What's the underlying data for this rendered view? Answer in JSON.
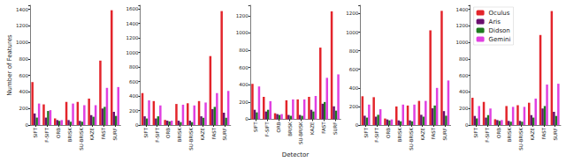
{
  "chart_data": [
    {
      "type": "bar",
      "y_label": "Number of Features",
      "categories": [
        "SIFT",
        "F-SIFT",
        "ORB",
        "BRISK",
        "SU-BRISK",
        "KAZE",
        "FAST",
        "SURF"
      ],
      "series": [
        {
          "name": "Oculus",
          "color": "#e3242b",
          "values": [
            520,
            250,
            80,
            280,
            280,
            320,
            780,
            1390
          ]
        },
        {
          "name": "Aris",
          "color": "#6b0f6e",
          "values": [
            140,
            90,
            60,
            60,
            50,
            120,
            200,
            160
          ]
        },
        {
          "name": "Didson",
          "color": "#1e7a1e",
          "values": [
            90,
            170,
            50,
            40,
            40,
            100,
            220,
            110
          ]
        },
        {
          "name": "Gemini",
          "color": "#e040e0",
          "values": [
            260,
            180,
            60,
            260,
            240,
            240,
            450,
            460
          ]
        }
      ],
      "ylim": [
        0,
        1450
      ],
      "yticks": [
        0,
        200,
        400,
        600,
        800,
        1000,
        1200,
        1400
      ],
      "grid": false
    },
    {
      "type": "bar",
      "categories": [
        "SIFT",
        "F-SIFT",
        "ORB",
        "BRISK",
        "SU-BRISK",
        "KAZE",
        "FAST",
        "SURF"
      ],
      "series": [
        {
          "name": "Oculus",
          "color": "#e3242b",
          "values": [
            440,
            330,
            70,
            290,
            300,
            330,
            950,
            1570
          ]
        },
        {
          "name": "Aris",
          "color": "#6b0f6e",
          "values": [
            120,
            90,
            60,
            60,
            60,
            120,
            220,
            170
          ]
        },
        {
          "name": "Didson",
          "color": "#1e7a1e",
          "values": [
            90,
            120,
            50,
            40,
            40,
            100,
            250,
            100
          ]
        },
        {
          "name": "Gemini",
          "color": "#e040e0",
          "values": [
            340,
            270,
            60,
            280,
            270,
            310,
            440,
            470
          ]
        }
      ],
      "ylim": [
        0,
        1650
      ],
      "yticks": [
        0,
        200,
        400,
        600,
        800,
        1000,
        1200,
        1400,
        1600
      ],
      "grid": false
    },
    {
      "type": "bar",
      "x_label": "Detector",
      "categories": [
        "SIFT",
        "F-SIFT",
        "ORB",
        "BRISK",
        "SU-BRISK",
        "KAZE",
        "FAST",
        "SURF"
      ],
      "series": [
        {
          "name": "Oculus",
          "color": "#e3242b",
          "values": [
            410,
            260,
            70,
            220,
            230,
            260,
            830,
            1250
          ]
        },
        {
          "name": "Aris",
          "color": "#6b0f6e",
          "values": [
            110,
            90,
            60,
            50,
            50,
            110,
            180,
            150
          ]
        },
        {
          "name": "Didson",
          "color": "#1e7a1e",
          "values": [
            80,
            110,
            50,
            40,
            40,
            90,
            200,
            100
          ]
        },
        {
          "name": "Gemini",
          "color": "#e040e0",
          "values": [
            380,
            210,
            60,
            230,
            230,
            270,
            480,
            520
          ]
        }
      ],
      "ylim": [
        0,
        1320
      ],
      "yticks": [
        0,
        200,
        400,
        600,
        800,
        1000,
        1200
      ],
      "grid": false
    },
    {
      "type": "bar",
      "categories": [
        "SIFT",
        "F-SIFT",
        "ORB",
        "BRISK",
        "SU-BRISK",
        "KAZE",
        "FAST",
        "SURF"
      ],
      "series": [
        {
          "name": "Oculus",
          "color": "#e3242b",
          "values": [
            310,
            300,
            70,
            200,
            210,
            260,
            1020,
            1230
          ]
        },
        {
          "name": "Aris",
          "color": "#6b0f6e",
          "values": [
            100,
            90,
            60,
            50,
            50,
            110,
            180,
            150
          ]
        },
        {
          "name": "Didson",
          "color": "#1e7a1e",
          "values": [
            80,
            110,
            50,
            40,
            40,
            90,
            210,
            100
          ]
        },
        {
          "name": "Gemini",
          "color": "#e040e0",
          "values": [
            220,
            170,
            60,
            220,
            220,
            260,
            400,
            480
          ]
        }
      ],
      "ylim": [
        0,
        1290
      ],
      "yticks": [
        0,
        200,
        400,
        600,
        800,
        1000,
        1200
      ],
      "grid": false
    },
    {
      "type": "bar",
      "legend": "upper left",
      "categories": [
        "SIFT",
        "F-SIFT",
        "ORB",
        "BRISK",
        "SU-BRISK",
        "KAZE",
        "FAST",
        "SURF"
      ],
      "series": [
        {
          "name": "Oculus",
          "color": "#e3242b",
          "values": [
            330,
            280,
            70,
            230,
            240,
            270,
            1090,
            1380
          ]
        },
        {
          "name": "Aris",
          "color": "#6b0f6e",
          "values": [
            110,
            90,
            60,
            50,
            50,
            120,
            200,
            160
          ]
        },
        {
          "name": "Didson",
          "color": "#1e7a1e",
          "values": [
            80,
            120,
            50,
            40,
            40,
            90,
            230,
            110
          ]
        },
        {
          "name": "Gemini",
          "color": "#e040e0",
          "values": [
            230,
            200,
            60,
            220,
            220,
            320,
            490,
            500
          ]
        }
      ],
      "ylim": [
        0,
        1450
      ],
      "yticks": [
        0,
        200,
        400,
        600,
        800,
        1000,
        1200,
        1400
      ],
      "grid": false
    }
  ]
}
